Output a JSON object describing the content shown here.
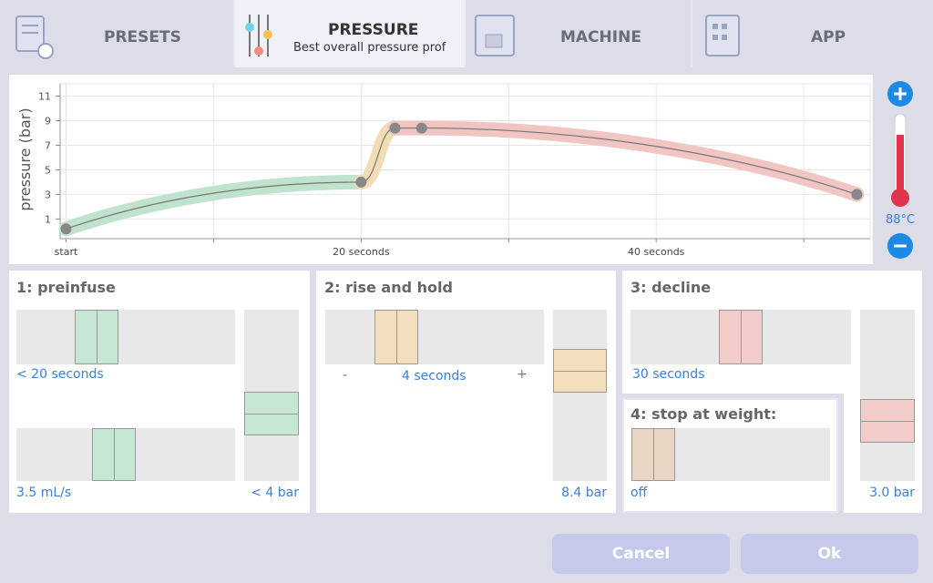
{
  "tabs": [
    {
      "label": "PRESETS"
    },
    {
      "label": "PRESSURE",
      "subtitle": "Best overall pressure prof"
    },
    {
      "label": "MACHINE"
    },
    {
      "label": "APP"
    }
  ],
  "chart_data": {
    "type": "line",
    "y_label": "pressure (bar)",
    "x": [
      0,
      20,
      22.3,
      24.1,
      53.6
    ],
    "values": [
      0.2,
      4,
      8.4,
      8.4,
      3
    ],
    "xlim": [
      -0.4,
      54.5
    ],
    "ylim": [
      -0.6,
      12
    ],
    "xticks": [
      {
        "value": 0,
        "label": "start"
      },
      {
        "value": 20,
        "label": "20 seconds"
      },
      {
        "value": 40,
        "label": "40 seconds"
      }
    ],
    "minor_xticks": [
      10,
      30,
      50
    ],
    "yticks": [
      1,
      3,
      5,
      7,
      9,
      11
    ],
    "grid": true
  },
  "temperature": "88°C",
  "panels": {
    "preinfuse": {
      "title": "1: preinfuse",
      "time": "< 20 seconds",
      "flow": "3.5 mL/s",
      "pressure": "< 4 bar"
    },
    "rise": {
      "title": "2: rise and hold",
      "minus": "-",
      "time": "4 seconds",
      "plus": "+",
      "pressure": "8.4 bar"
    },
    "decline": {
      "title": "3: decline",
      "time": "30 seconds",
      "pressure": "3.0 bar"
    },
    "stop": {
      "title": "4: stop at weight:",
      "weight": "off"
    }
  },
  "buttons": {
    "cancel": "Cancel",
    "ok": "Ok"
  }
}
